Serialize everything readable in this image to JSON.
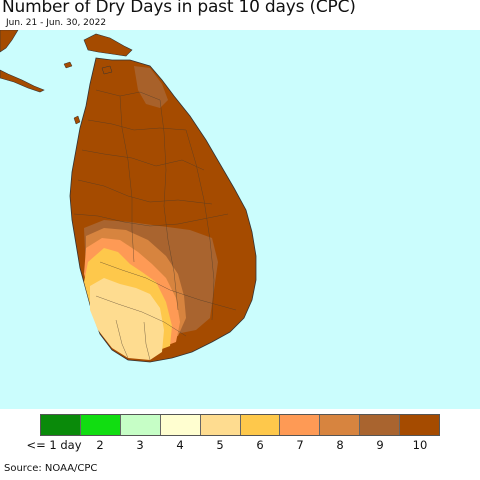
{
  "title": "Number of Dry Days in past 10 days (CPC)",
  "subtitle": "Jun. 21 - Jun. 30, 2022",
  "source": "Source: NOAA/CPC",
  "map": {
    "region": "Sri Lanka",
    "ocean_color": "#cbfdfd",
    "land_dominant_value": 10,
    "southwest_values": [
      5,
      6,
      7,
      8,
      9
    ]
  },
  "legend": {
    "colors": [
      "#0a8a0a",
      "#11dd11",
      "#c6fec6",
      "#fffed0",
      "#fedc90",
      "#fec84b",
      "#fe9a55",
      "#d7843f",
      "#a9642f",
      "#a54b00"
    ],
    "labels": [
      "<= 1 day",
      "2",
      "3",
      "4",
      "5",
      "6",
      "7",
      "8",
      "9",
      "10"
    ]
  }
}
